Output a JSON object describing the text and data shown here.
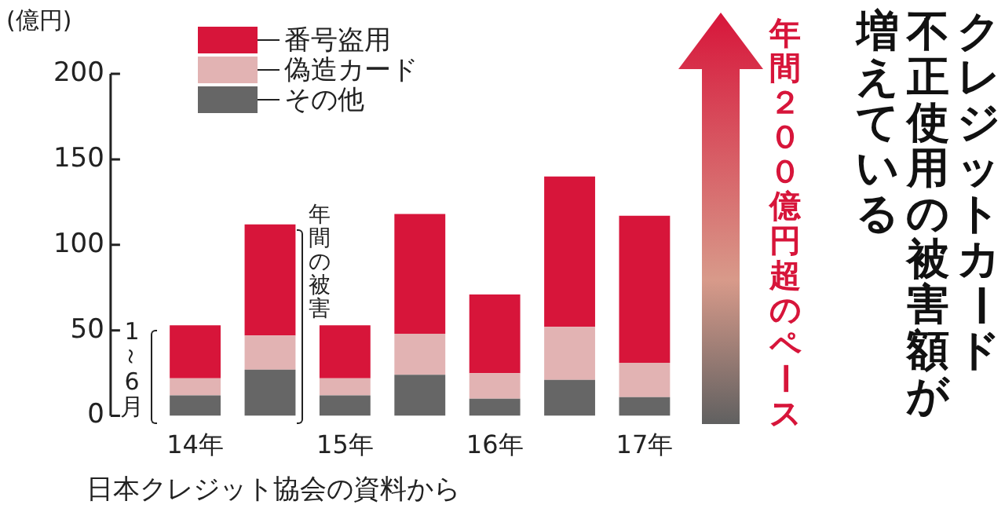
{
  "chart_data": {
    "type": "bar",
    "stacked": true,
    "title": "クレジットカード",
    "subtitle": "不正使用の被害額が増えている",
    "ylabel": "(億円)",
    "categories": [
      "14年",
      null,
      "15年",
      null,
      "16年",
      null,
      "17年",
      null
    ],
    "series": [
      {
        "name": "その他",
        "color": "#666666",
        "values": [
          12,
          27,
          12,
          24,
          10,
          21,
          11,
          null
        ]
      },
      {
        "name": "偽造カード",
        "color": "#e2b3b3",
        "values": [
          10,
          20,
          10,
          24,
          15,
          31,
          20,
          null
        ]
      },
      {
        "name": "番号盗用",
        "color": "#d7153a",
        "values": [
          31,
          65,
          31,
          70,
          46,
          88,
          86,
          null
        ]
      }
    ],
    "ylim": [
      0,
      200
    ],
    "yticks": [
      0,
      50,
      100,
      150,
      200
    ],
    "legend": "top left",
    "annotations": [
      "1～6月",
      "年間の被害",
      "年間２００億円超のペース",
      "日本クレジット協会の資料から"
    ]
  }
}
